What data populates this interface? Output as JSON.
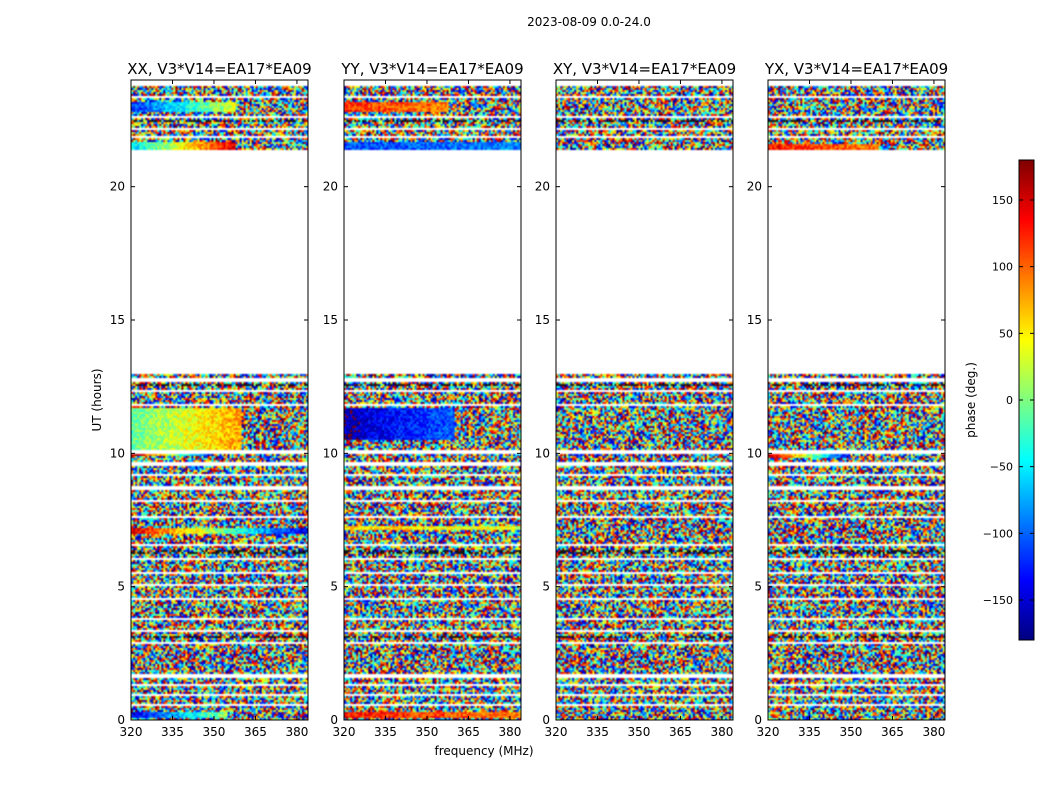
{
  "chart_data": {
    "type": "heatmap",
    "suptitle": "2023-08-09 0.0-24.0",
    "xlabel": "frequency (MHz)",
    "ylabel": "UT (hours)",
    "xlim": [
      320,
      384
    ],
    "ylim": [
      0,
      24
    ],
    "x_ticks": [
      "320",
      "335",
      "350",
      "365",
      "380"
    ],
    "x_tick_values": [
      320,
      335,
      350,
      365,
      380
    ],
    "y_ticks": [
      "0",
      "5",
      "10",
      "15",
      "20"
    ],
    "y_tick_values": [
      0,
      5,
      10,
      15,
      20
    ],
    "colorbar": {
      "label": "phase (deg.)",
      "range": [
        -180,
        180
      ],
      "ticks": [
        "150",
        "100",
        "50",
        "0",
        "−50",
        "−100",
        "−150"
      ],
      "tick_values": [
        150,
        100,
        50,
        0,
        -50,
        -100,
        -150
      ],
      "colormap": "jet",
      "colors": [
        "#00007f",
        "#0000ff",
        "#007fff",
        "#00ffff",
        "#7fff7f",
        "#ffff00",
        "#ff7f00",
        "#ff0000",
        "#7f0000"
      ]
    },
    "data_gap_ut": [
      13.0,
      21.4
    ],
    "panels": [
      {
        "title": "XX, V3*V14=EA17*EA09",
        "structured_bands": [
          {
            "ut": [
              22.8,
              23.2
            ],
            "freq": [
              320,
              358
            ],
            "phase_start": -120,
            "phase_end": 30
          },
          {
            "ut": [
              21.4,
              21.7
            ],
            "freq": [
              320,
              358
            ],
            "phase_start": -60,
            "phase_end": 150
          },
          {
            "ut": [
              9.9,
              10.05
            ],
            "freq": [
              320,
              350
            ],
            "phase_start": 170,
            "phase_end": -150
          },
          {
            "ut": [
              7.0,
              7.2
            ],
            "freq": [
              320,
              384
            ],
            "phase_start": 150,
            "phase_end": -150
          },
          {
            "ut": [
              0.1,
              0.3
            ],
            "freq": [
              320,
              355
            ],
            "phase_start": -140,
            "phase_end": 10
          },
          {
            "ut": [
              10.1,
              11.7
            ],
            "freq": [
              320,
              360
            ],
            "phase_start": -10,
            "phase_end": 80
          }
        ]
      },
      {
        "title": "YY, V3*V14=EA17*EA09",
        "structured_bands": [
          {
            "ut": [
              22.8,
              23.2
            ],
            "freq": [
              320,
              358
            ],
            "phase_start": 120,
            "phase_end": 90
          },
          {
            "ut": [
              21.4,
              21.7
            ],
            "freq": [
              320,
              384
            ],
            "phase_start": -110,
            "phase_end": -90
          },
          {
            "ut": [
              10.5,
              11.7
            ],
            "freq": [
              320,
              360
            ],
            "phase_start": -160,
            "phase_end": -100
          },
          {
            "ut": [
              7.1,
              7.3
            ],
            "freq": [
              320,
              384
            ],
            "phase_start": 60,
            "phase_end": 30
          },
          {
            "ut": [
              0.1,
              0.3
            ],
            "freq": [
              320,
              384
            ],
            "phase_start": 130,
            "phase_end": 90
          }
        ]
      },
      {
        "title": "XY, V3*V14=EA17*EA09",
        "structured_bands": []
      },
      {
        "title": "YX, V3*V14=EA17*EA09",
        "structured_bands": [
          {
            "ut": [
              21.4,
              21.6
            ],
            "freq": [
              320,
              360
            ],
            "phase_start": 130,
            "phase_end": 90
          },
          {
            "ut": [
              9.8,
              10.0
            ],
            "freq": [
              320,
              350
            ],
            "phase_start": 170,
            "phase_end": -150
          }
        ]
      }
    ]
  }
}
